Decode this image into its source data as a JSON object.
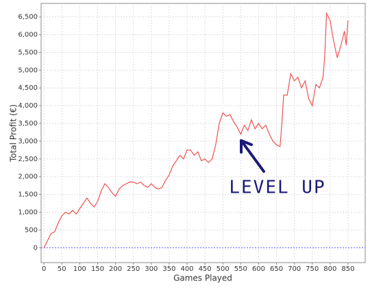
{
  "chart_data": {
    "type": "line",
    "x_label": "Games Played",
    "y_label": "Total Profit (€)",
    "annotation": "LEVEL UP",
    "x": [
      0,
      10,
      20,
      30,
      40,
      50,
      60,
      70,
      80,
      90,
      100,
      110,
      120,
      130,
      140,
      150,
      160,
      170,
      180,
      190,
      200,
      210,
      220,
      230,
      240,
      250,
      260,
      270,
      280,
      290,
      300,
      310,
      320,
      330,
      340,
      350,
      360,
      370,
      380,
      390,
      400,
      410,
      420,
      430,
      440,
      450,
      460,
      470,
      480,
      490,
      500,
      510,
      520,
      530,
      540,
      550,
      560,
      570,
      580,
      590,
      600,
      610,
      620,
      630,
      640,
      650,
      660,
      665,
      670,
      680,
      690,
      700,
      710,
      720,
      730,
      740,
      750,
      760,
      770,
      780,
      785,
      790,
      800,
      810,
      820,
      830,
      840,
      845,
      850
    ],
    "series": [
      {
        "name": "Total Profit",
        "color": "#f05050",
        "values": [
          0,
          200,
          400,
          450,
          700,
          900,
          1000,
          950,
          1050,
          950,
          1100,
          1250,
          1400,
          1250,
          1150,
          1300,
          1600,
          1800,
          1700,
          1550,
          1450,
          1650,
          1750,
          1800,
          1850,
          1850,
          1800,
          1850,
          1750,
          1700,
          1800,
          1700,
          1650,
          1700,
          1900,
          2050,
          2300,
          2450,
          2600,
          2500,
          2750,
          2750,
          2600,
          2700,
          2450,
          2500,
          2400,
          2500,
          2900,
          3500,
          3800,
          3700,
          3750,
          3550,
          3400,
          3200,
          3450,
          3300,
          3600,
          3350,
          3500,
          3350,
          3450,
          3200,
          3000,
          2900,
          2850,
          3500,
          4300,
          4300,
          4900,
          4700,
          4800,
          4500,
          4700,
          4200,
          4000,
          4600,
          4500,
          4800,
          5400,
          6600,
          6400,
          5800,
          5350,
          5700,
          6100,
          5700,
          6400
        ]
      }
    ],
    "reference_line": {
      "value": 0,
      "color": "#5a5aff"
    },
    "xlim": [
      -8,
      898
    ],
    "ylim": [
      -420,
      6880
    ],
    "xticks": [
      0,
      50,
      100,
      150,
      200,
      250,
      300,
      350,
      400,
      450,
      500,
      550,
      600,
      650,
      700,
      750,
      800,
      850
    ],
    "yticks": [
      0,
      {
        "value": 500,
        "label": "500"
      },
      {
        "value": 1000,
        "label": "1,000"
      },
      {
        "value": 1500,
        "label": "1,500"
      },
      {
        "value": 2000,
        "label": "2,000"
      },
      {
        "value": 2500,
        "label": "2,500"
      },
      {
        "value": 3000,
        "label": "3,000"
      },
      {
        "value": 3500,
        "label": "3,500"
      },
      {
        "value": 4000,
        "label": "4,000"
      },
      {
        "value": 4500,
        "label": "4,500"
      },
      {
        "value": 5000,
        "label": "5,000"
      },
      {
        "value": 5500,
        "label": "5,500"
      },
      {
        "value": 6000,
        "label": "6,000"
      },
      {
        "value": 6500,
        "label": "6,500"
      }
    ],
    "grid": true
  }
}
